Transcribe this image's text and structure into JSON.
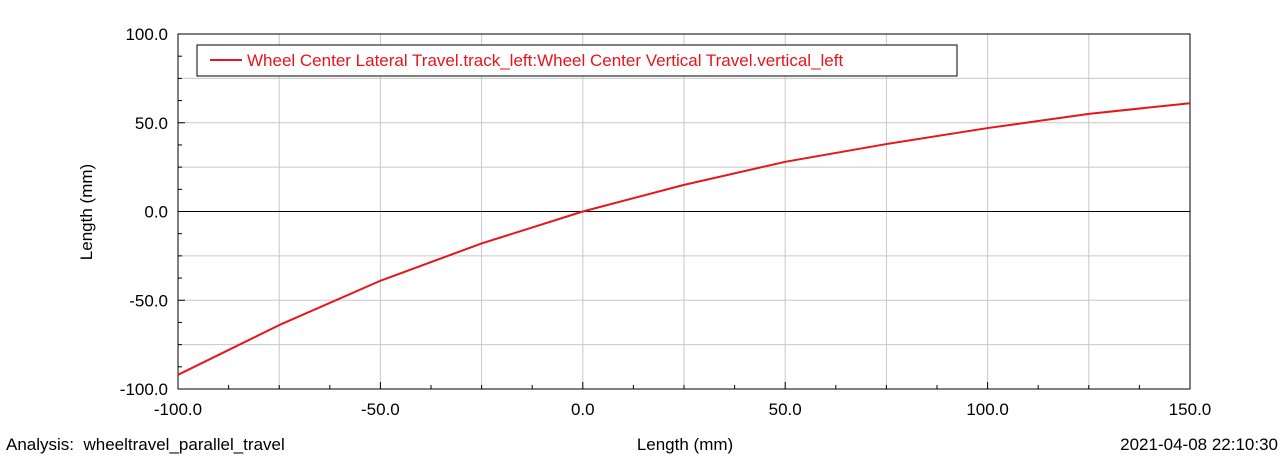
{
  "chart_data": {
    "type": "line",
    "xlabel": "Length (mm)",
    "ylabel": "Length (mm)",
    "xlim": [
      -100,
      150
    ],
    "ylim": [
      -100,
      100
    ],
    "x_ticks": [
      -100,
      -50,
      0,
      50,
      100,
      150
    ],
    "x_tick_labels": [
      "-100.0",
      "-50.0",
      "0.0",
      "50.0",
      "100.0",
      "150.0"
    ],
    "y_ticks": [
      -100,
      -50,
      0,
      50,
      100
    ],
    "y_tick_labels": [
      "-100.0",
      "-50.0",
      "0.0",
      "50.0",
      "100.0"
    ],
    "grid": true,
    "legend_position": "top-left",
    "series": [
      {
        "name": "Wheel Center Lateral Travel.track_left:Wheel Center Vertical Travel.vertical_left",
        "color": "#e8141c",
        "x": [
          -100,
          -75,
          -50,
          -25,
          0,
          25,
          50,
          75,
          100,
          125,
          150
        ],
        "y": [
          -92,
          -64,
          -39,
          -18,
          0,
          15,
          28,
          38,
          47,
          55,
          61
        ]
      }
    ]
  },
  "footer": {
    "analysis": "Analysis:  wheeltravel_parallel_travel",
    "xlabel": "Length (mm)",
    "timestamp": "2021-04-08 22:10:30"
  }
}
